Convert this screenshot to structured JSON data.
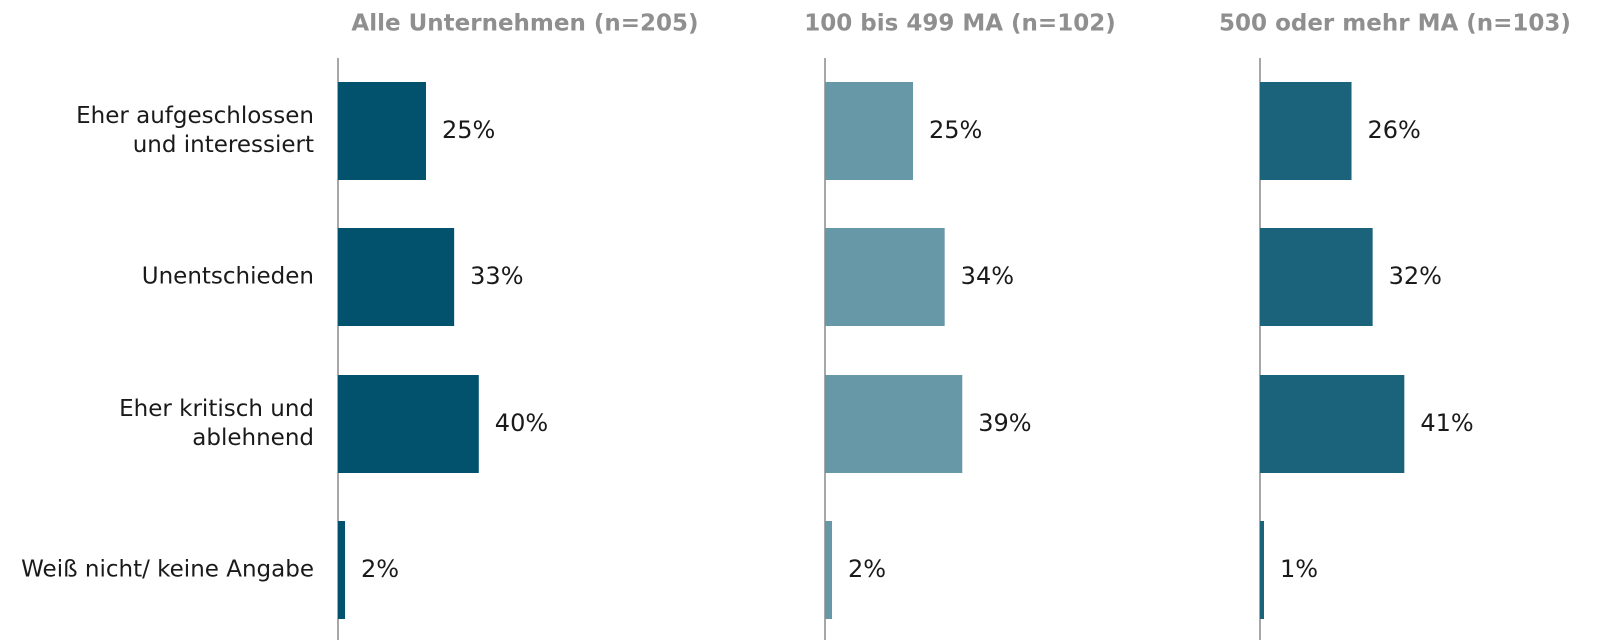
{
  "chart_data": [
    {
      "type": "bar",
      "orientation": "horizontal",
      "title": "Alle Unternehmen (n=205)",
      "categories": [
        [
          "Eher aufgeschlossen",
          "und interessiert"
        ],
        [
          "Unentschieden"
        ],
        [
          "Eher kritisch und",
          "ablehnend"
        ],
        [
          "Weiß nicht/ keine Angabe"
        ]
      ],
      "values": [
        25,
        33,
        40,
        2
      ],
      "value_labels": [
        "25%",
        "33%",
        "40%",
        "2%"
      ],
      "color": "#02516d",
      "xlim": [
        0,
        100
      ],
      "grid": false
    },
    {
      "type": "bar",
      "orientation": "horizontal",
      "title": "100 bis 499 MA (n=102)",
      "categories": [
        [
          "Eher aufgeschlossen",
          "und interessiert"
        ],
        [
          "Unentschieden"
        ],
        [
          "Eher kritisch und",
          "ablehnend"
        ],
        [
          "Weiß nicht/ keine Angabe"
        ]
      ],
      "values": [
        25,
        34,
        39,
        2
      ],
      "value_labels": [
        "25%",
        "34%",
        "39%",
        "2%"
      ],
      "color": "#6798a8",
      "xlim": [
        0,
        100
      ],
      "grid": false
    },
    {
      "type": "bar",
      "orientation": "horizontal",
      "title": "500 oder mehr MA (n=103)",
      "categories": [
        [
          "Eher aufgeschlossen",
          "und interessiert"
        ],
        [
          "Unentschieden"
        ],
        [
          "Eher kritisch und",
          "ablehnend"
        ],
        [
          "Weiß nicht/ keine Angabe"
        ]
      ],
      "values": [
        26,
        32,
        41,
        1
      ],
      "value_labels": [
        "26%",
        "32%",
        "41%",
        "1%"
      ],
      "color": "#1b627b",
      "xlim": [
        0,
        100
      ],
      "grid": false
    }
  ]
}
